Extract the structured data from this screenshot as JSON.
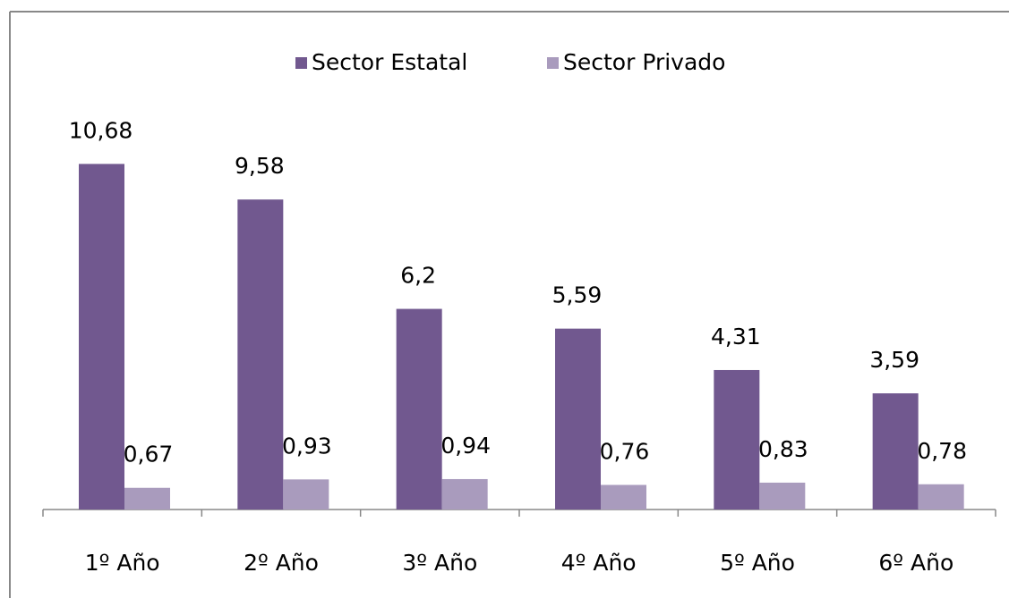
{
  "chart_data": {
    "type": "bar",
    "categories": [
      "1º Año",
      "2º Año",
      "3º Año",
      "4º Año",
      "5º Año",
      "6º Año"
    ],
    "series": [
      {
        "name": "Sector Estatal",
        "color": "#71588f",
        "values": [
          10.68,
          9.58,
          6.2,
          5.59,
          4.31,
          3.59
        ],
        "value_labels": [
          "10,68",
          "9,58",
          "6,2",
          "5,59",
          "4,31",
          "3,59"
        ]
      },
      {
        "name": "Sector Privado",
        "color": "#a99bbd",
        "values": [
          0.67,
          0.93,
          0.94,
          0.76,
          0.83,
          0.78
        ],
        "value_labels": [
          "0,67",
          "0,93",
          "0,94",
          "0,76",
          "0,83",
          "0,78"
        ]
      }
    ],
    "legend": "top"
  }
}
